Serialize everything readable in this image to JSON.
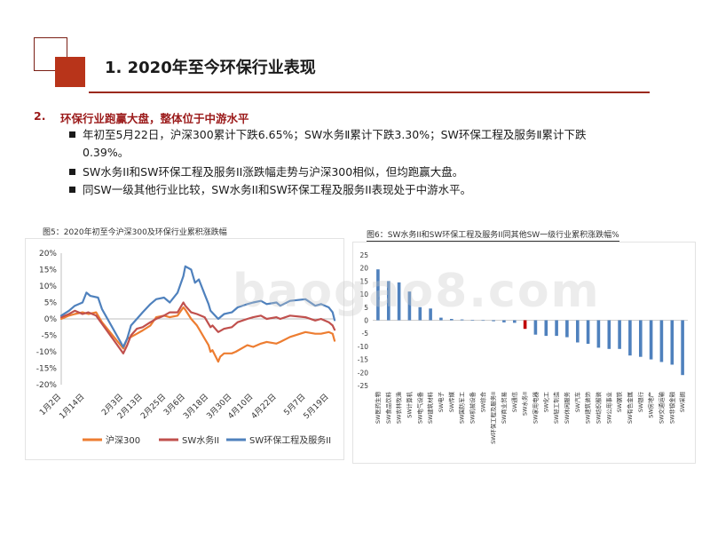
{
  "header": {
    "title": "1. 2020年至今环保行业表现"
  },
  "section": {
    "number": "2.",
    "heading": "环保行业跑赢大盘，整体位于中游水平",
    "bullets": [
      {
        "line1": "年初至5月22日，沪深300累计下跌6.65%；SW水务Ⅱ累计下跌3.30%；SW环保工程及服务Ⅱ累计下跌",
        "line2": "0.39%。"
      },
      {
        "line1": "SW水务II和SW环保工程及服务II涨跌幅走势与沪深300相似，但均跑赢大盘。",
        "line2": ""
      },
      {
        "line1": "同SW一级其他行业比较，SW水务II和SW环保工程及服务II表现处于中游水平。",
        "line2": ""
      }
    ]
  },
  "watermark": "baogao8.com",
  "colors": {
    "accent": "#b8341a",
    "hs300": "#ED7D31",
    "water": "#C0504D",
    "envsvc": "#4F81BD",
    "bar": "#4F81BD",
    "bar_highlight": "#C00000"
  },
  "chart_data": [
    {
      "type": "line",
      "title": "图5：2020年初至今沪深300及环保行业累积涨跌幅",
      "ylim": [
        -20,
        20
      ],
      "yticks": [
        "20%",
        "15%",
        "10%",
        "5%",
        "0%",
        "-5%",
        "-10%",
        "-15%",
        "-20%"
      ],
      "ytick_values": [
        20,
        15,
        10,
        5,
        0,
        -5,
        -10,
        -15,
        -20
      ],
      "x_start": "2020-01-02",
      "x_end": "2020-05-22",
      "xtick_labels": [
        "1月2日",
        "1月14日",
        "2月3日",
        "2月13日",
        "2月25日",
        "3月6日",
        "3月18日",
        "3月30日",
        "4月10日",
        "4月22日",
        "5月7日",
        "5月19日"
      ],
      "xtick_dates": [
        "2020-01-02",
        "2020-01-14",
        "2020-02-03",
        "2020-02-13",
        "2020-02-25",
        "2020-03-06",
        "2020-03-18",
        "2020-03-30",
        "2020-04-10",
        "2020-04-22",
        "2020-05-07",
        "2020-05-19"
      ],
      "legend_position": "bottom",
      "series": [
        {
          "name": "沪深300",
          "color": "#ED7D31",
          "points": [
            [
              "2020-01-02",
              0.0
            ],
            [
              "2020-01-06",
              1.0
            ],
            [
              "2020-01-09",
              1.5
            ],
            [
              "2020-01-13",
              2.0
            ],
            [
              "2020-01-16",
              1.5
            ],
            [
              "2020-01-20",
              2.0
            ],
            [
              "2020-01-23",
              -1.0
            ],
            [
              "2020-02-03",
              -9.0
            ],
            [
              "2020-02-05",
              -6.0
            ],
            [
              "2020-02-07",
              -5.5
            ],
            [
              "2020-02-10",
              -4.5
            ],
            [
              "2020-02-13",
              -3.5
            ],
            [
              "2020-02-17",
              -2.0
            ],
            [
              "2020-02-20",
              0.5
            ],
            [
              "2020-02-24",
              1.0
            ],
            [
              "2020-02-27",
              0.5
            ],
            [
              "2020-03-02",
              1.0
            ],
            [
              "2020-03-05",
              3.5
            ],
            [
              "2020-03-06",
              2.8
            ],
            [
              "2020-03-09",
              0.0
            ],
            [
              "2020-03-12",
              -2.0
            ],
            [
              "2020-03-13",
              -3.0
            ],
            [
              "2020-03-16",
              -6.0
            ],
            [
              "2020-03-18",
              -8.0
            ],
            [
              "2020-03-19",
              -10.0
            ],
            [
              "2020-03-20",
              -9.5
            ],
            [
              "2020-03-23",
              -13.0
            ],
            [
              "2020-03-24",
              -11.5
            ],
            [
              "2020-03-26",
              -10.5
            ],
            [
              "2020-03-30",
              -10.5
            ],
            [
              "2020-04-01",
              -10.0
            ],
            [
              "2020-04-07",
              -8.0
            ],
            [
              "2020-04-10",
              -8.5
            ],
            [
              "2020-04-14",
              -7.5
            ],
            [
              "2020-04-17",
              -7.0
            ],
            [
              "2020-04-22",
              -7.5
            ],
            [
              "2020-04-24",
              -7.0
            ],
            [
              "2020-04-29",
              -5.5
            ],
            [
              "2020-05-07",
              -4.0
            ],
            [
              "2020-05-12",
              -4.5
            ],
            [
              "2020-05-15",
              -4.5
            ],
            [
              "2020-05-19",
              -4.0
            ],
            [
              "2020-05-21",
              -4.5
            ],
            [
              "2020-05-22",
              -6.65
            ]
          ]
        },
        {
          "name": "SW水务II",
          "color": "#C0504D",
          "points": [
            [
              "2020-01-02",
              0.5
            ],
            [
              "2020-01-06",
              1.5
            ],
            [
              "2020-01-09",
              2.5
            ],
            [
              "2020-01-13",
              1.5
            ],
            [
              "2020-01-16",
              2.0
            ],
            [
              "2020-01-20",
              1.0
            ],
            [
              "2020-01-23",
              -1.5
            ],
            [
              "2020-02-03",
              -10.5
            ],
            [
              "2020-02-05",
              -8.0
            ],
            [
              "2020-02-07",
              -5.0
            ],
            [
              "2020-02-10",
              -3.0
            ],
            [
              "2020-02-13",
              -2.5
            ],
            [
              "2020-02-17",
              -1.0
            ],
            [
              "2020-02-20",
              0.0
            ],
            [
              "2020-02-24",
              1.0
            ],
            [
              "2020-02-27",
              2.0
            ],
            [
              "2020-03-02",
              2.0
            ],
            [
              "2020-03-05",
              5.0
            ],
            [
              "2020-03-06",
              4.0
            ],
            [
              "2020-03-09",
              2.0
            ],
            [
              "2020-03-12",
              1.5
            ],
            [
              "2020-03-16",
              0.5
            ],
            [
              "2020-03-19",
              -2.5
            ],
            [
              "2020-03-20",
              -2.0
            ],
            [
              "2020-03-23",
              -4.0
            ],
            [
              "2020-03-26",
              -3.0
            ],
            [
              "2020-03-30",
              -2.5
            ],
            [
              "2020-04-02",
              -1.0
            ],
            [
              "2020-04-07",
              0.0
            ],
            [
              "2020-04-10",
              0.5
            ],
            [
              "2020-04-14",
              1.0
            ],
            [
              "2020-04-17",
              0.0
            ],
            [
              "2020-04-22",
              0.5
            ],
            [
              "2020-04-24",
              0.0
            ],
            [
              "2020-04-29",
              1.0
            ],
            [
              "2020-05-07",
              0.5
            ],
            [
              "2020-05-12",
              -0.5
            ],
            [
              "2020-05-15",
              0.0
            ],
            [
              "2020-05-19",
              -1.0
            ],
            [
              "2020-05-21",
              -2.0
            ],
            [
              "2020-05-22",
              -3.3
            ]
          ]
        },
        {
          "name": "SW环保工程及服务II",
          "color": "#4F81BD",
          "points": [
            [
              "2020-01-02",
              1.0
            ],
            [
              "2020-01-06",
              2.5
            ],
            [
              "2020-01-09",
              4.0
            ],
            [
              "2020-01-13",
              5.0
            ],
            [
              "2020-01-15",
              8.0
            ],
            [
              "2020-01-17",
              7.0
            ],
            [
              "2020-01-21",
              6.5
            ],
            [
              "2020-01-23",
              3.0
            ],
            [
              "2020-02-03",
              -8.5
            ],
            [
              "2020-02-05",
              -6.0
            ],
            [
              "2020-02-07",
              -2.0
            ],
            [
              "2020-02-10",
              0.0
            ],
            [
              "2020-02-13",
              2.0
            ],
            [
              "2020-02-17",
              4.5
            ],
            [
              "2020-02-20",
              6.0
            ],
            [
              "2020-02-24",
              6.5
            ],
            [
              "2020-02-27",
              5.0
            ],
            [
              "2020-03-02",
              8.0
            ],
            [
              "2020-03-05",
              13.0
            ],
            [
              "2020-03-06",
              16.0
            ],
            [
              "2020-03-09",
              15.0
            ],
            [
              "2020-03-11",
              11.0
            ],
            [
              "2020-03-13",
              12.0
            ],
            [
              "2020-03-16",
              7.5
            ],
            [
              "2020-03-18",
              4.5
            ],
            [
              "2020-03-19",
              2.5
            ],
            [
              "2020-03-23",
              0.0
            ],
            [
              "2020-03-26",
              1.5
            ],
            [
              "2020-03-30",
              2.0
            ],
            [
              "2020-04-02",
              3.5
            ],
            [
              "2020-04-07",
              4.5
            ],
            [
              "2020-04-10",
              5.0
            ],
            [
              "2020-04-14",
              5.5
            ],
            [
              "2020-04-17",
              4.5
            ],
            [
              "2020-04-22",
              5.0
            ],
            [
              "2020-04-24",
              4.0
            ],
            [
              "2020-04-29",
              5.5
            ],
            [
              "2020-05-07",
              6.0
            ],
            [
              "2020-05-12",
              4.0
            ],
            [
              "2020-05-15",
              4.5
            ],
            [
              "2020-05-19",
              3.5
            ],
            [
              "2020-05-21",
              2.0
            ],
            [
              "2020-05-22",
              -0.39
            ]
          ]
        }
      ]
    },
    {
      "type": "bar",
      "title": "图6：SW水务II和SW环保工程及服务II同其他SW一级行业累积涨跌幅%",
      "ylim": [
        -25,
        25
      ],
      "yticks": [
        25,
        20,
        15,
        10,
        5,
        0,
        -5,
        -10,
        -15,
        -20,
        -25
      ],
      "highlight_category": "SW水务II",
      "categories": [
        "SW医药生物",
        "SW食品饮料",
        "SW农林牧渔",
        "SW计算机",
        "SW电气设备",
        "SW建筑材料",
        "SW电子",
        "SW传媒",
        "SW国防军工",
        "SW机械设备",
        "SW综合",
        "SW环保工程及服务II",
        "SW商业贸易",
        "SW通信",
        "SW水务II",
        "SW家用电器",
        "SW化工",
        "SW轻工制造",
        "SW休闲服务",
        "SW汽车",
        "SW建筑装饰",
        "SW纺织服装",
        "SW公用事业",
        "SW钢铁",
        "SW有色金属",
        "SW银行",
        "SW房地产",
        "SW交通运输",
        "SW非银金融",
        "SW采掘"
      ],
      "values": [
        19.5,
        15.0,
        14.5,
        11.0,
        5.0,
        4.5,
        1.0,
        0.5,
        0.3,
        0.1,
        -0.2,
        -0.39,
        -0.8,
        -1.0,
        -3.3,
        -5.5,
        -6.0,
        -6.0,
        -6.5,
        -8.5,
        -9.0,
        -10.5,
        -11.0,
        -11.0,
        -13.5,
        -14.0,
        -15.0,
        -16.0,
        -17.0,
        -21.0
      ]
    }
  ]
}
